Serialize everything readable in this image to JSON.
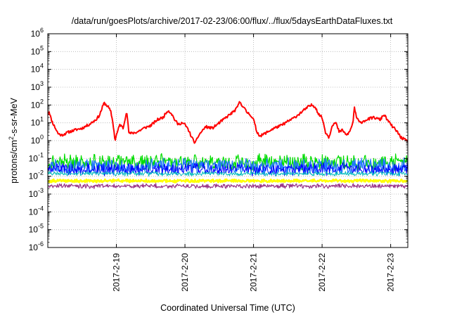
{
  "chart_data": {
    "type": "line",
    "title": "/data/run/goesPlots/archive/2017-02-23/06:00/flux/../flux/5daysEarthDataFluxes.txt",
    "xlabel": "Coordinated Universal Time (UTC)",
    "ylabel_parts": {
      "base": "protons/cm",
      "sup": "2",
      "rest": "-s-sr-MeV"
    },
    "y_scale": "log",
    "ylim": [
      1e-06,
      1000000.0
    ],
    "y_tick_exponents": [
      -6,
      -5,
      -4,
      -3,
      -2,
      -1,
      0,
      1,
      2,
      3,
      4,
      5,
      6
    ],
    "y_tick_base": "10",
    "xlim_days": [
      -1.0,
      4.25
    ],
    "x_ticks": [
      {
        "day": 0,
        "label": "2017-2-19"
      },
      {
        "day": 1,
        "label": "2017-2-20"
      },
      {
        "day": 2,
        "label": "2017-2-21"
      },
      {
        "day": 3,
        "label": "2017-2-22"
      },
      {
        "day": 4,
        "label": "2017-2-23"
      }
    ],
    "grid": true,
    "legend": "none",
    "series": [
      {
        "color": "#ff0000",
        "width": 2.0,
        "noise": 0.15,
        "seed": 11,
        "points": [
          [
            -1.0,
            30
          ],
          [
            -0.98,
            45
          ],
          [
            -0.95,
            15
          ],
          [
            -0.9,
            6
          ],
          [
            -0.85,
            2.5
          ],
          [
            -0.8,
            2
          ],
          [
            -0.7,
            3
          ],
          [
            -0.6,
            4
          ],
          [
            -0.5,
            5
          ],
          [
            -0.4,
            8
          ],
          [
            -0.3,
            15
          ],
          [
            -0.25,
            25
          ],
          [
            -0.18,
            130
          ],
          [
            -0.12,
            80
          ],
          [
            -0.08,
            40
          ],
          [
            -0.05,
            10
          ],
          [
            -0.02,
            1.0
          ],
          [
            0.0,
            2
          ],
          [
            0.05,
            8
          ],
          [
            0.1,
            5
          ],
          [
            0.13,
            20
          ],
          [
            0.15,
            50
          ],
          [
            0.18,
            3
          ],
          [
            0.2,
            2.5
          ],
          [
            0.3,
            3
          ],
          [
            0.4,
            5
          ],
          [
            0.5,
            7
          ],
          [
            0.6,
            15
          ],
          [
            0.68,
            20
          ],
          [
            0.75,
            50
          ],
          [
            0.8,
            35
          ],
          [
            0.85,
            15
          ],
          [
            0.9,
            8
          ],
          [
            0.95,
            10
          ],
          [
            1.0,
            8
          ],
          [
            1.05,
            4
          ],
          [
            1.1,
            1.5
          ],
          [
            1.15,
            0.7
          ],
          [
            1.2,
            2
          ],
          [
            1.3,
            6
          ],
          [
            1.4,
            5
          ],
          [
            1.5,
            10
          ],
          [
            1.6,
            20
          ],
          [
            1.7,
            40
          ],
          [
            1.75,
            60
          ],
          [
            1.8,
            150
          ],
          [
            1.85,
            80
          ],
          [
            1.9,
            40
          ],
          [
            1.95,
            30
          ],
          [
            2.0,
            15
          ],
          [
            2.05,
            3
          ],
          [
            2.1,
            1.8
          ],
          [
            2.2,
            3
          ],
          [
            2.3,
            5
          ],
          [
            2.4,
            7
          ],
          [
            2.5,
            12
          ],
          [
            2.6,
            20
          ],
          [
            2.7,
            40
          ],
          [
            2.8,
            80
          ],
          [
            2.85,
            100
          ],
          [
            2.9,
            80
          ],
          [
            2.95,
            30
          ],
          [
            3.0,
            20
          ],
          [
            3.05,
            3
          ],
          [
            3.1,
            1.5
          ],
          [
            3.15,
            8
          ],
          [
            3.2,
            10
          ],
          [
            3.25,
            3
          ],
          [
            3.3,
            4
          ],
          [
            3.35,
            2
          ],
          [
            3.4,
            3
          ],
          [
            3.45,
            10
          ],
          [
            3.47,
            80
          ],
          [
            3.5,
            20
          ],
          [
            3.55,
            10
          ],
          [
            3.65,
            15
          ],
          [
            3.75,
            20
          ],
          [
            3.85,
            15
          ],
          [
            3.9,
            30
          ],
          [
            3.95,
            15
          ],
          [
            4.0,
            8
          ],
          [
            4.05,
            5
          ],
          [
            4.1,
            3
          ],
          [
            4.15,
            1.5
          ],
          [
            4.2,
            1.2
          ],
          [
            4.25,
            0.8
          ]
        ]
      },
      {
        "color": "#00dd00",
        "width": 1.2,
        "base": 0.06,
        "noise": 0.55,
        "seed": 21
      },
      {
        "color": "#2277ff",
        "width": 1.2,
        "base": 0.035,
        "noise": 0.55,
        "seed": 33
      },
      {
        "color": "#0000ff",
        "width": 1.0,
        "base": 0.025,
        "noise": 0.4,
        "seed": 45
      },
      {
        "color": "#00bbbb",
        "width": 1.0,
        "base": 0.014,
        "noise": 0.15,
        "seed": 57
      },
      {
        "color": "#ffff00",
        "width": 2.5,
        "base": 0.0055,
        "noise": 0.1,
        "seed": 69
      },
      {
        "color": "#993388",
        "width": 1.2,
        "base": 0.0028,
        "noise": 0.15,
        "seed": 81
      }
    ]
  }
}
